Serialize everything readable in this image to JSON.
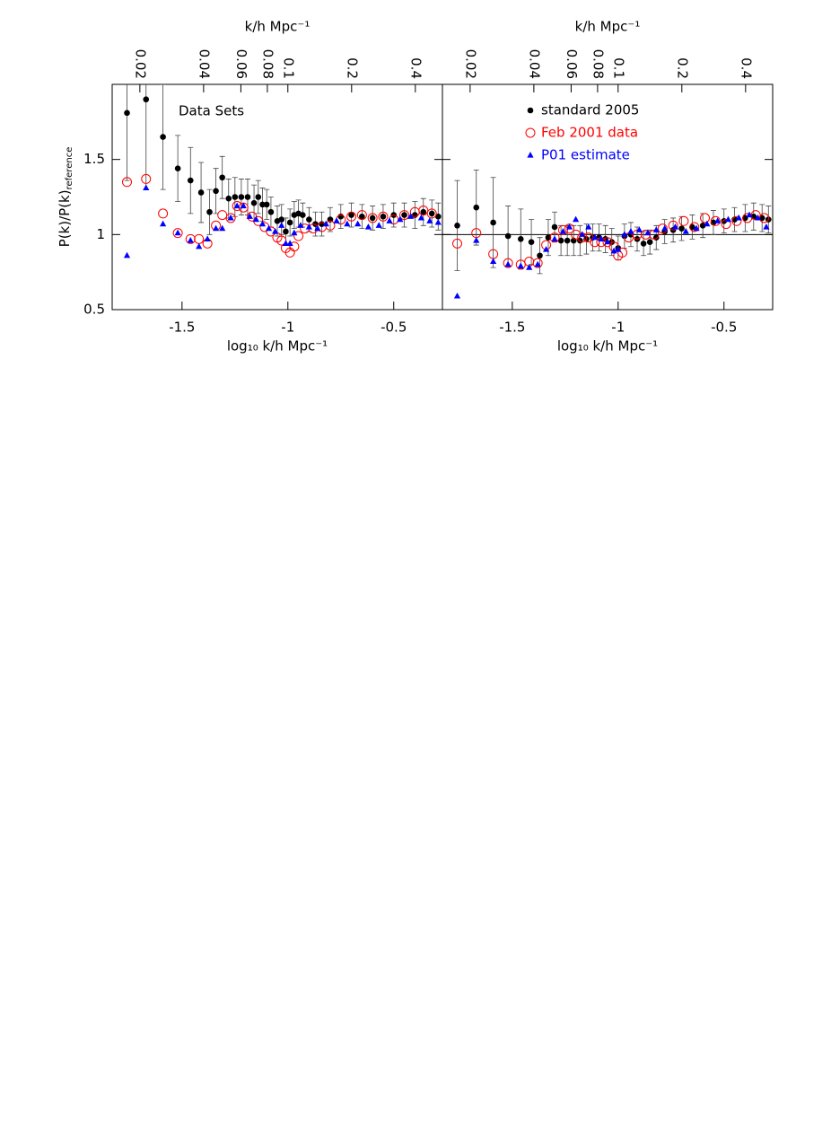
{
  "chart_data": [
    {
      "type": "scatter",
      "xlabel": "log₁₀ k/h Mpc⁻¹",
      "ylabel": "P(k)/P(k)",
      "ylabel_sub": "reference",
      "x2label": "k/h Mpc⁻¹",
      "annotation": "Data Sets",
      "xlim": [
        -1.83,
        -0.27
      ],
      "xticks": [
        -1.5,
        -1,
        -0.5
      ],
      "ylim": [
        0.5,
        2
      ],
      "yticks": [
        0.5,
        1,
        1.5
      ],
      "ytick_labels": true,
      "x2lim": [
        0.0148,
        0.537
      ],
      "x2log": true,
      "x2ticks": [
        0.02,
        0.04,
        0.06,
        0.08,
        0.1,
        0.2,
        0.4
      ],
      "series": [
        {
          "color": "#000000",
          "marker": "dot",
          "x": [
            -1.76,
            -1.67,
            -1.59,
            -1.52,
            -1.46,
            -1.41,
            -1.37,
            -1.34,
            -1.31,
            -1.28,
            -1.25,
            -1.22,
            -1.19,
            -1.16,
            -1.14,
            -1.12,
            -1.1,
            -1.08,
            -1.05,
            -1.03,
            -1.01,
            -0.99,
            -0.97,
            -0.95,
            -0.93,
            -0.9,
            -0.87,
            -0.84,
            -0.8,
            -0.75,
            -0.7,
            -0.65,
            -0.6,
            -0.55,
            -0.5,
            -0.45,
            -0.4,
            -0.36,
            -0.32,
            -0.29
          ],
          "values": [
            1.81,
            1.9,
            1.65,
            1.44,
            1.36,
            1.28,
            1.15,
            1.29,
            1.38,
            1.24,
            1.25,
            1.25,
            1.25,
            1.21,
            1.25,
            1.2,
            1.2,
            1.15,
            1.09,
            1.1,
            1.02,
            1.08,
            1.13,
            1.14,
            1.13,
            1.1,
            1.07,
            1.07,
            1.1,
            1.12,
            1.13,
            1.12,
            1.11,
            1.12,
            1.13,
            1.13,
            1.13,
            1.15,
            1.14,
            1.12
          ],
          "errors": [
            0.45,
            0.6,
            0.35,
            0.22,
            0.22,
            0.2,
            0.15,
            0.15,
            0.14,
            0.13,
            0.13,
            0.12,
            0.12,
            0.12,
            0.11,
            0.11,
            0.1,
            0.1,
            0.1,
            0.1,
            0.09,
            0.09,
            0.09,
            0.09,
            0.08,
            0.08,
            0.08,
            0.08,
            0.08,
            0.08,
            0.08,
            0.08,
            0.08,
            0.08,
            0.08,
            0.08,
            0.09,
            0.09,
            0.09,
            0.09
          ]
        },
        {
          "color": "#ff0000",
          "marker": "ring",
          "x": [
            -1.76,
            -1.67,
            -1.59,
            -1.52,
            -1.46,
            -1.42,
            -1.38,
            -1.34,
            -1.31,
            -1.27,
            -1.24,
            -1.21,
            -1.17,
            -1.14,
            -1.11,
            -1.08,
            -1.05,
            -1.03,
            -1.01,
            -0.99,
            -0.97,
            -0.95,
            -0.92,
            -0.88,
            -0.84,
            -0.8,
            -0.75,
            -0.7,
            -0.65,
            -0.6,
            -0.55,
            -0.5,
            -0.45,
            -0.4,
            -0.36,
            -0.32
          ],
          "values": [
            1.35,
            1.37,
            1.14,
            1.01,
            0.97,
            0.97,
            0.94,
            1.06,
            1.13,
            1.11,
            1.19,
            1.18,
            1.12,
            1.09,
            1.05,
            1.02,
            0.98,
            0.96,
            0.91,
            0.88,
            0.92,
            0.99,
            1.04,
            1.04,
            1.05,
            1.06,
            1.1,
            1.12,
            1.13,
            1.11,
            1.12,
            1.1,
            1.13,
            1.15,
            1.16,
            1.14
          ]
        },
        {
          "color": "#0000ff",
          "marker": "triangle",
          "x": [
            -1.76,
            -1.67,
            -1.59,
            -1.52,
            -1.46,
            -1.42,
            -1.38,
            -1.34,
            -1.31,
            -1.27,
            -1.24,
            -1.21,
            -1.18,
            -1.15,
            -1.12,
            -1.09,
            -1.06,
            -1.03,
            -1.01,
            -0.99,
            -0.97,
            -0.94,
            -0.9,
            -0.86,
            -0.82,
            -0.77,
            -0.72,
            -0.67,
            -0.62,
            -0.57,
            -0.52,
            -0.47,
            -0.42,
            -0.37,
            -0.33,
            -0.29
          ],
          "values": [
            0.86,
            1.31,
            1.07,
            1.01,
            0.96,
            0.92,
            0.97,
            1.04,
            1.04,
            1.11,
            1.19,
            1.19,
            1.12,
            1.1,
            1.07,
            1.04,
            1.02,
            1.06,
            0.94,
            0.94,
            1.01,
            1.06,
            1.05,
            1.04,
            1.07,
            1.09,
            1.07,
            1.07,
            1.05,
            1.06,
            1.09,
            1.1,
            1.12,
            1.11,
            1.09,
            1.08
          ]
        }
      ]
    },
    {
      "type": "scatter",
      "xlabel": "log₁₀ k/h Mpc⁻¹",
      "x2label": "k/h Mpc⁻¹",
      "xlim": [
        -1.83,
        -0.27
      ],
      "xticks": [
        -1.5,
        -1,
        -0.5
      ],
      "ylim": [
        0.5,
        2
      ],
      "yticks": [
        0.5,
        1,
        1.5
      ],
      "ytick_labels": false,
      "x2lim": [
        0.0148,
        0.537
      ],
      "x2log": true,
      "x2ticks": [
        0.02,
        0.04,
        0.06,
        0.08,
        0.1,
        0.2,
        0.4
      ],
      "hline": 1,
      "legend": "upper-center",
      "series": [
        {
          "name": "standard 2005",
          "color": "#000000",
          "marker": "dot",
          "x": [
            -1.76,
            -1.67,
            -1.59,
            -1.52,
            -1.46,
            -1.41,
            -1.37,
            -1.33,
            -1.3,
            -1.27,
            -1.24,
            -1.21,
            -1.18,
            -1.15,
            -1.12,
            -1.09,
            -1.06,
            -1.03,
            -1.0,
            -0.97,
            -0.94,
            -0.91,
            -0.88,
            -0.85,
            -0.82,
            -0.78,
            -0.74,
            -0.7,
            -0.65,
            -0.6,
            -0.55,
            -0.5,
            -0.45,
            -0.4,
            -0.36,
            -0.32,
            -0.29
          ],
          "values": [
            1.06,
            1.18,
            1.08,
            0.99,
            0.97,
            0.95,
            0.86,
            0.98,
            1.05,
            0.96,
            0.96,
            0.96,
            0.96,
            0.97,
            0.98,
            0.98,
            0.97,
            0.95,
            0.91,
            0.99,
            1.0,
            0.97,
            0.94,
            0.95,
            0.98,
            1.02,
            1.03,
            1.04,
            1.05,
            1.06,
            1.08,
            1.09,
            1.1,
            1.11,
            1.12,
            1.11,
            1.1
          ],
          "errors": [
            0.3,
            0.25,
            0.3,
            0.2,
            0.2,
            0.15,
            0.12,
            0.12,
            0.1,
            0.1,
            0.1,
            0.1,
            0.1,
            0.1,
            0.09,
            0.09,
            0.09,
            0.09,
            0.08,
            0.08,
            0.08,
            0.08,
            0.08,
            0.08,
            0.08,
            0.08,
            0.08,
            0.08,
            0.08,
            0.08,
            0.08,
            0.08,
            0.08,
            0.09,
            0.09,
            0.09,
            0.09
          ]
        },
        {
          "name": "Feb 2001 data",
          "color": "#ff0000",
          "marker": "ring",
          "x": [
            -1.76,
            -1.67,
            -1.59,
            -1.52,
            -1.46,
            -1.42,
            -1.38,
            -1.34,
            -1.3,
            -1.26,
            -1.23,
            -1.2,
            -1.17,
            -1.14,
            -1.11,
            -1.08,
            -1.05,
            -1.02,
            -1.0,
            -0.98,
            -0.95,
            -0.91,
            -0.87,
            -0.83,
            -0.79,
            -0.74,
            -0.69,
            -0.64,
            -0.59,
            -0.54,
            -0.49,
            -0.44,
            -0.39,
            -0.35,
            -0.31
          ],
          "values": [
            0.94,
            1.01,
            0.87,
            0.81,
            0.8,
            0.82,
            0.81,
            0.93,
            0.98,
            1.03,
            1.04,
            1.0,
            0.98,
            0.98,
            0.95,
            0.95,
            0.95,
            0.92,
            0.86,
            0.88,
            0.98,
            1.0,
            1.0,
            1.0,
            1.04,
            1.06,
            1.09,
            1.05,
            1.11,
            1.09,
            1.07,
            1.09,
            1.11,
            1.13,
            1.11
          ]
        },
        {
          "name": "P01 estimate",
          "color": "#0000ff",
          "marker": "triangle",
          "x": [
            -1.76,
            -1.67,
            -1.59,
            -1.52,
            -1.46,
            -1.42,
            -1.38,
            -1.34,
            -1.3,
            -1.26,
            -1.23,
            -1.2,
            -1.17,
            -1.14,
            -1.11,
            -1.08,
            -1.05,
            -1.02,
            -1.0,
            -0.97,
            -0.94,
            -0.9,
            -0.86,
            -0.82,
            -0.78,
            -0.73,
            -0.68,
            -0.63,
            -0.58,
            -0.53,
            -0.48,
            -0.43,
            -0.38,
            -0.34,
            -0.3
          ],
          "values": [
            0.59,
            0.96,
            0.82,
            0.8,
            0.79,
            0.78,
            0.8,
            0.9,
            0.97,
            1.02,
            1.05,
            1.1,
            1.0,
            1.05,
            0.98,
            0.97,
            0.95,
            0.89,
            0.9,
            1.0,
            1.02,
            1.03,
            1.01,
            1.03,
            1.04,
            1.05,
            1.02,
            1.04,
            1.07,
            1.09,
            1.1,
            1.11,
            1.13,
            1.11,
            1.05
          ]
        }
      ]
    }
  ]
}
